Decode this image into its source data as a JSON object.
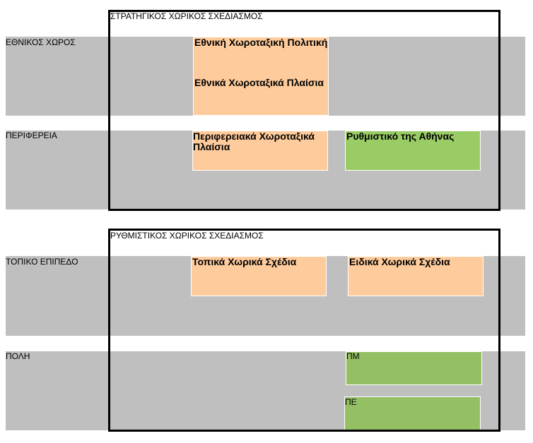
{
  "strategic": {
    "title": "ΣΤΡΑΤΗΓΙΚΟΣ ΧΩΡΙΚΟΣ ΣΧΕΔΙΑΣΜΟΣ",
    "national_label": "ΕΘΝΙΚΟΣ ΧΩΡΟΣ",
    "regional_label": "ΠΕΡΙΦΕΡΕΙΑ",
    "national_policy": "Εθνική Χωροταξική Πολιτική",
    "national_frameworks": "Εθνικά Χωροταξικά Πλαίσια",
    "regional_frameworks": "Περιφερειακά  Χωροταξικά Πλαίσια",
    "athens_plan": "Ρυθμιστικό της Αθήνας"
  },
  "regulatory": {
    "title": "ΡΥΘΜΙΣΤΙΚΟΣ ΧΩΡΙΚΟΣ ΣΧΕΔΙΑΣΜΟΣ",
    "local_label": "ΤΟΠΙΚΟ ΕΠΙΠΕΔΟ",
    "city_label": "ΠΟΛΗ",
    "local_plans": "Τοπικά Χωρικά Σχέδια",
    "special_plans": "Ειδικά Χωρικά Σχέδια",
    "pm": "ΠΜ",
    "pe": "ΠΕ"
  },
  "colors": {
    "band": "#bfbfbf",
    "orange": "#fecb9c",
    "green_light": "#9acc66",
    "green": "#94c063"
  }
}
